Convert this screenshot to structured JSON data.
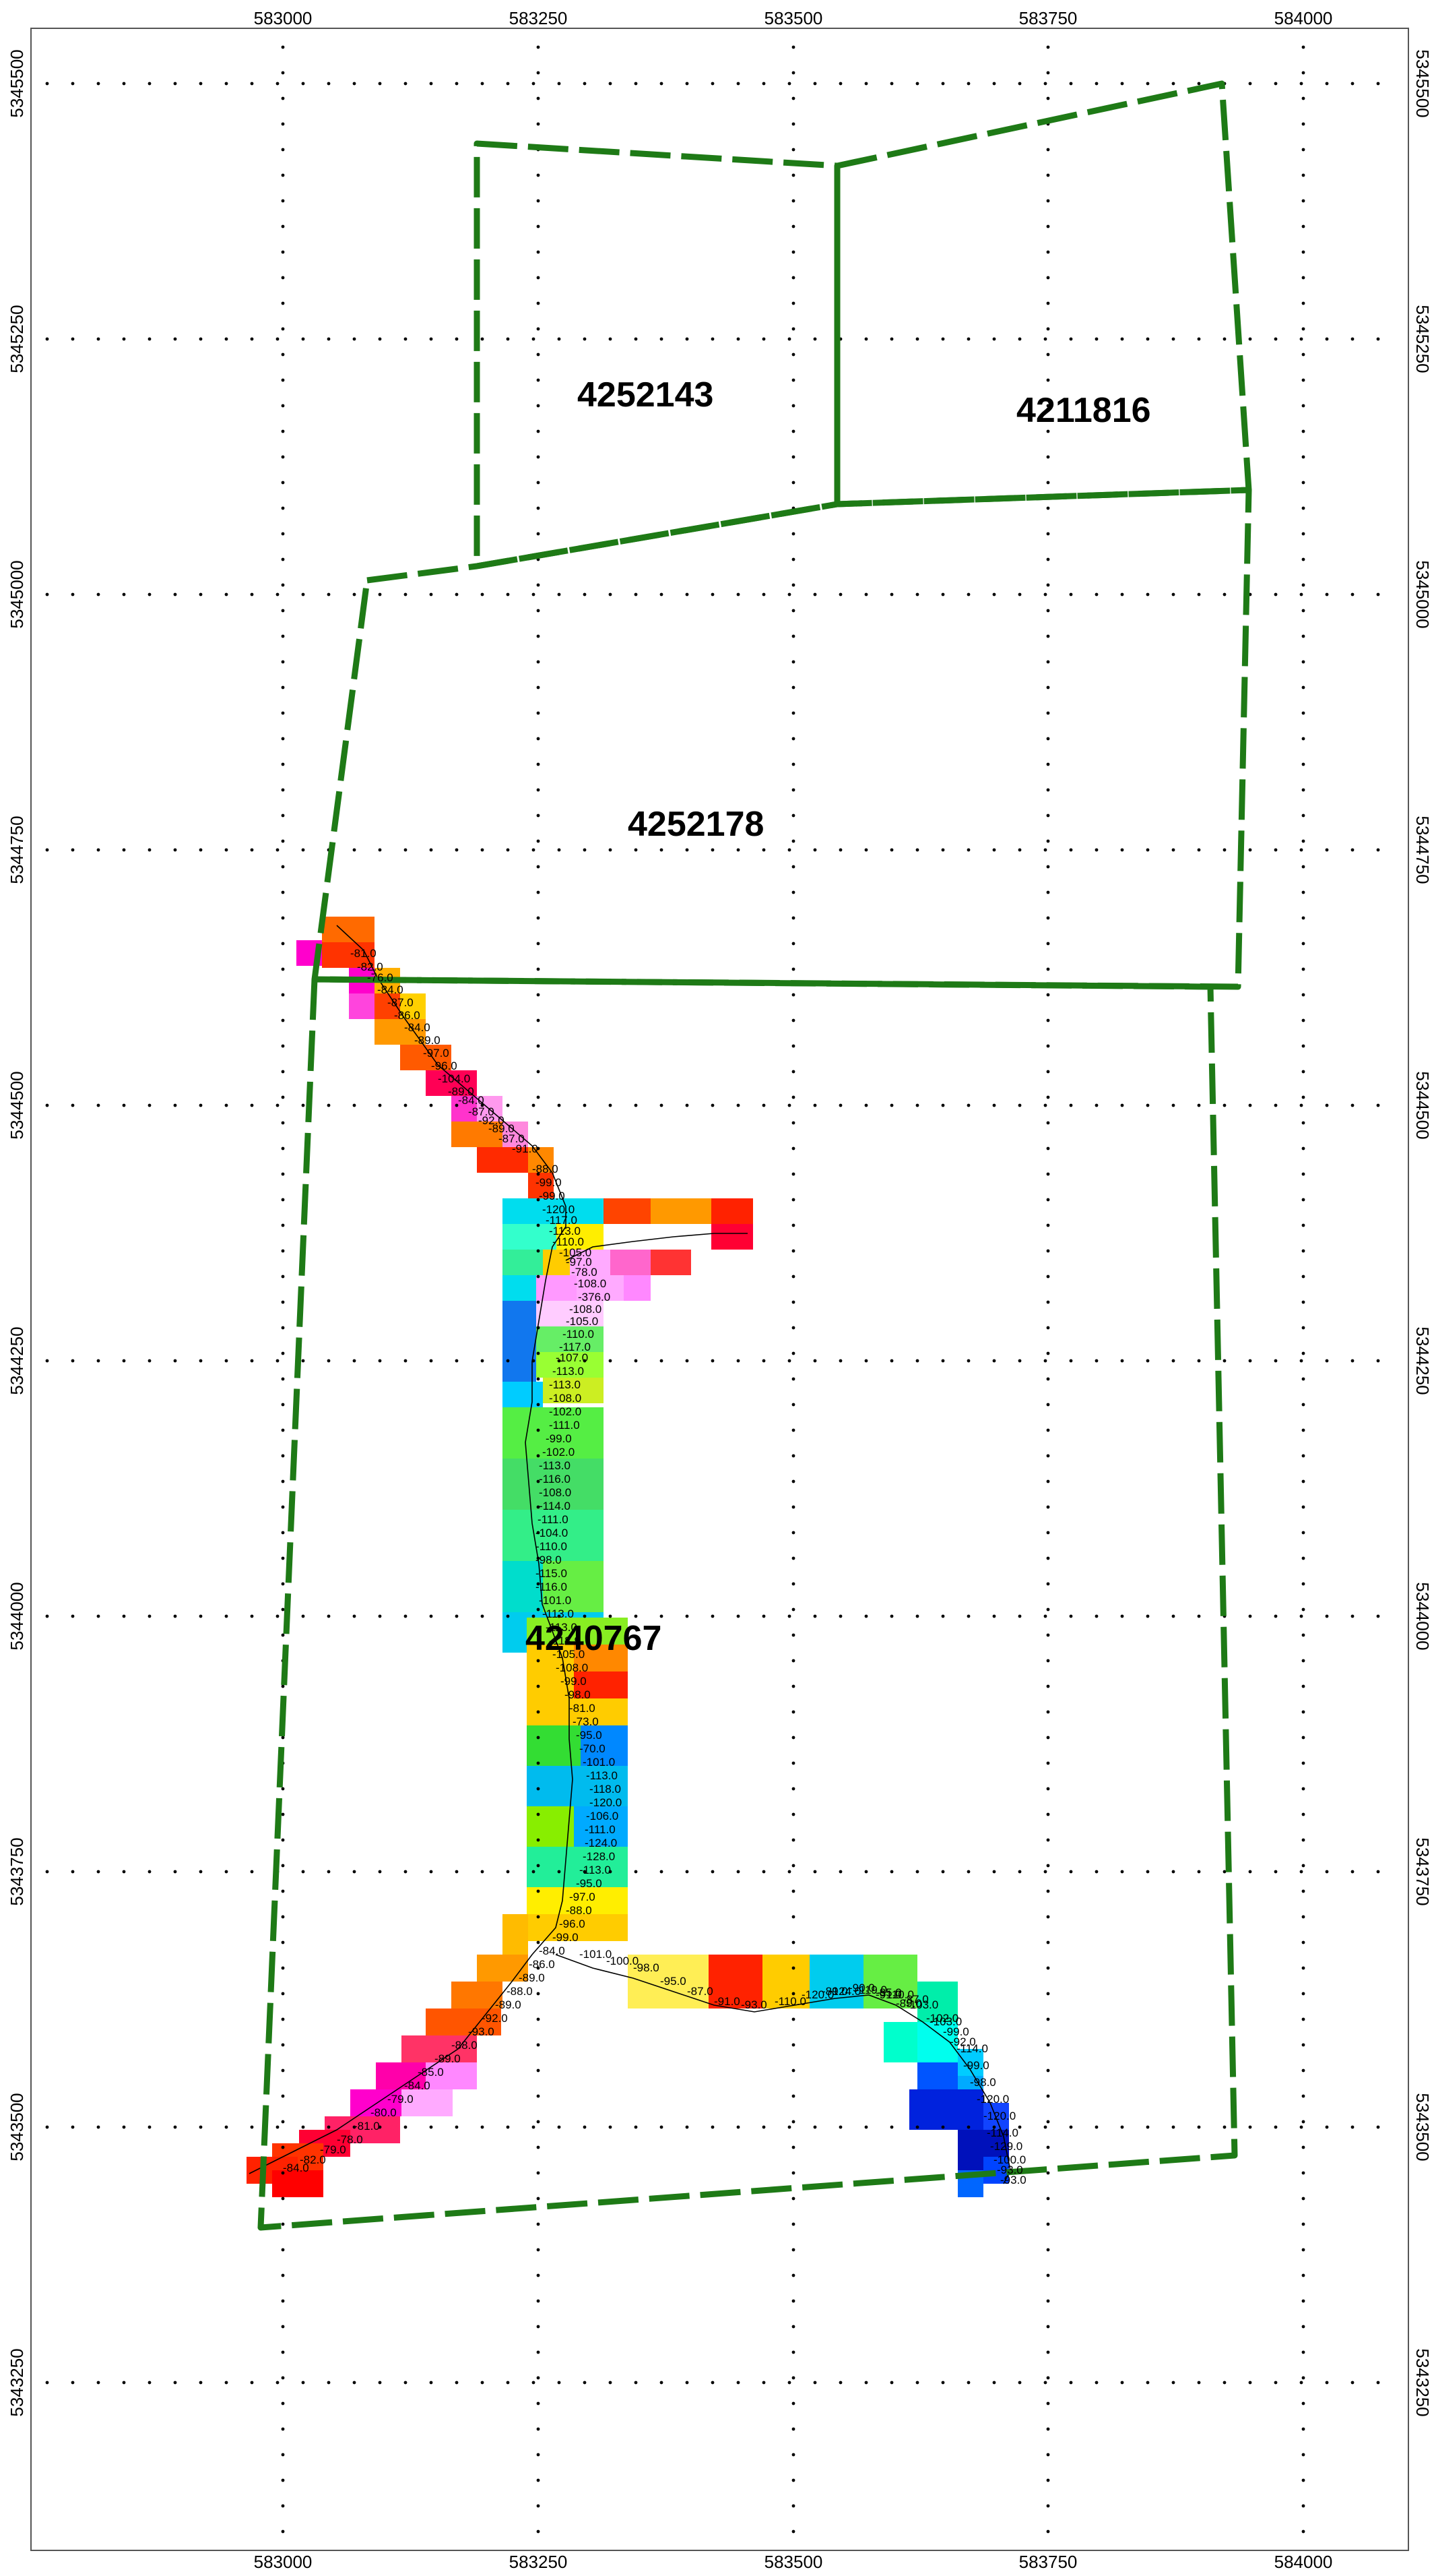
{
  "map": {
    "x_ticks": [
      "583000",
      "583250",
      "583500",
      "583750",
      "584000"
    ],
    "y_ticks": [
      "5345500",
      "5345250",
      "5345000",
      "5344750",
      "5344500",
      "5344250",
      "5344000",
      "5343750",
      "5343500",
      "5343250"
    ],
    "claim_outline_color": "#1e7a16",
    "claims": [
      {
        "id": "4252143",
        "label": "4252143"
      },
      {
        "id": "4211816",
        "label": "4211816"
      },
      {
        "id": "4252178",
        "label": "4252178"
      },
      {
        "id": "4240767",
        "label": "4240767"
      }
    ],
    "value_labels": [
      "-81.0",
      "-82.0",
      "-76.0",
      "-84.0",
      "-87.0",
      "-86.0",
      "-84.0",
      "-89.0",
      "-97.0",
      "-96.0",
      "-104.0",
      "-89.0",
      "-84.0",
      "-87.0",
      "-92.0",
      "-89.0",
      "-87.0",
      "-91.0",
      "-88.0",
      "-99.0",
      "-99.0",
      "-120.0",
      "-117.0",
      "-113.0",
      "-110.0",
      "-105.0",
      "-97.0",
      "-78.0",
      "-108.0",
      "-376.0",
      "-108.0",
      "-105.0",
      "-110.0",
      "-117.0",
      "-107.0",
      "-113.0",
      "-113.0",
      "-108.0",
      "-102.0",
      "-111.0",
      "-99.0",
      "-102.0",
      "-113.0",
      "-116.0",
      "-108.0",
      "-114.0",
      "-111.0",
      "-104.0",
      "-110.0",
      "-98.0",
      "-115.0",
      "-116.0",
      "-101.0",
      "-113.0",
      "-113.0",
      "-118.9",
      "-105.0",
      "-108.0",
      "-99.0",
      "-98.0",
      "-81.0",
      "-73.0",
      "-95.0",
      "-70.0",
      "-101.0",
      "-113.0",
      "-118.0",
      "-120.0",
      "-106.0",
      "-111.0",
      "-124.0",
      "-128.0",
      "-113.0",
      "-95.0",
      "-97.0",
      "-88.0",
      "-96.0",
      "-99.0",
      "-84.0",
      "-86.0",
      "-89.0",
      "-88.0",
      "-89.0",
      "-92.0",
      "-93.0",
      "-88.0",
      "-89.0",
      "-85.0",
      "-84.0",
      "-79.0",
      "-80.0",
      "-81.0",
      "-78.0",
      "-79.0",
      "-82.0",
      "-84.0",
      "-101.0",
      "-100.0",
      "-98.0",
      "-95.0",
      "-87.0",
      "-91.0",
      "-93.0",
      "-110.0",
      "-120.0",
      "-124.0",
      "-119.0",
      "-110.0",
      "-103.0",
      "-102.0",
      "-99.0",
      "-114.0",
      "-99.0",
      "-98.0",
      "-120.0",
      "-120.0",
      "-114.0",
      "-129.0",
      "-100.0",
      "-93.0",
      "-93.0",
      "-89.0",
      "-90.0",
      "-85.0",
      "-87.0",
      "-103.0",
      "-92.0",
      "-91.0",
      "-89.0"
    ]
  }
}
